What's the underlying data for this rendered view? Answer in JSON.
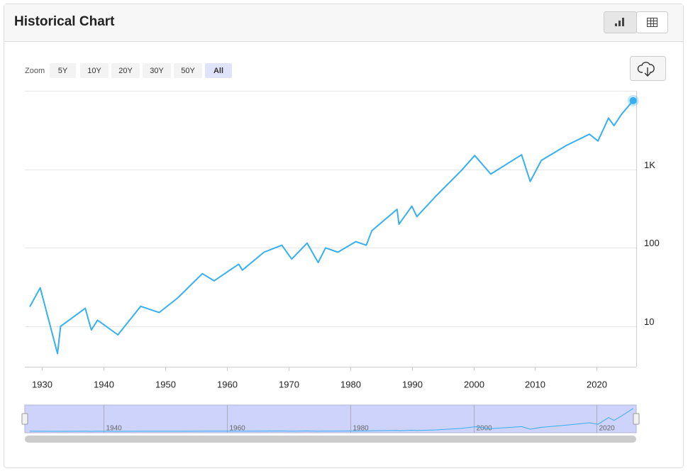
{
  "header": {
    "title": "Historical Chart"
  },
  "zoom": {
    "label": "Zoom",
    "buttons": [
      "5Y",
      "10Y",
      "20Y",
      "30Y",
      "50Y",
      "All"
    ]
  },
  "chart_data": {
    "type": "line",
    "log_scale": true,
    "x": [
      1928,
      1929.7,
      1932.5,
      1933,
      1937,
      1938,
      1939,
      1942.3,
      1946,
      1949,
      1952,
      1956,
      1957.9,
      1961.9,
      1962.5,
      1966,
      1968.9,
      1970.5,
      1973,
      1974.8,
      1976,
      1978,
      1980.9,
      1982.6,
      1983.5,
      1987.6,
      1987.9,
      1990,
      1990.8,
      1994,
      1998,
      2000.2,
      2002.8,
      2007.8,
      2009.2,
      2011,
      2015,
      2018.8,
      2020.2,
      2021.9,
      2022.8,
      2024,
      2025.9
    ],
    "series": [
      {
        "color": "#36b0f0",
        "values": [
          17.8,
          31,
          4.5,
          10,
          17,
          9,
          12,
          7.8,
          18,
          15,
          23,
          47,
          38,
          62,
          52,
          88,
          108,
          72,
          115,
          65,
          100,
          88,
          120,
          108,
          165,
          310,
          200,
          340,
          250,
          465,
          960,
          1500,
          870,
          1530,
          700,
          1300,
          2000,
          2800,
          2300,
          4500,
          3600,
          5000,
          7500
        ]
      }
    ],
    "xlim": [
      1927.2,
      2026.4
    ],
    "xticks": [
      1930,
      1940,
      1950,
      1960,
      1970,
      1980,
      1990,
      2000,
      2010,
      2020
    ],
    "ylim": [
      3.06,
      10000
    ],
    "yticks": [
      10,
      100,
      {
        "value": 1000,
        "label": "1K"
      }
    ],
    "grid": true,
    "navigator_xticks": [
      1940,
      1960,
      1980,
      2000,
      2020
    ]
  }
}
